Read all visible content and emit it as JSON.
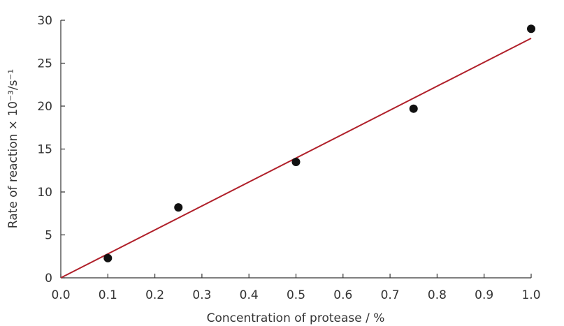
{
  "chart_data": {
    "type": "scatter",
    "title": "",
    "xlabel": "Concentration of protease / %",
    "ylabel": "Rate of reaction × 10⁻³/s⁻¹",
    "xlim": [
      0.0,
      1.0
    ],
    "ylim": [
      0,
      30
    ],
    "x_ticks": [
      "0.0",
      "0.1",
      "0.2",
      "0.3",
      "0.4",
      "0.5",
      "0.6",
      "0.7",
      "0.8",
      "0.9",
      "1.0"
    ],
    "y_ticks": [
      "0",
      "5",
      "10",
      "15",
      "20",
      "25",
      "30"
    ],
    "grid": false,
    "points": [
      {
        "x": 0.1,
        "y": 2.3
      },
      {
        "x": 0.25,
        "y": 8.2
      },
      {
        "x": 0.5,
        "y": 13.5
      },
      {
        "x": 0.75,
        "y": 19.7
      },
      {
        "x": 1.0,
        "y": 29.0
      }
    ],
    "trend_line": {
      "x": [
        0.0,
        1.0
      ],
      "y": [
        0.0,
        27.9
      ]
    },
    "colors": {
      "points": "#111111",
      "trend_line": "#b0202a",
      "axis": "#333333"
    }
  }
}
